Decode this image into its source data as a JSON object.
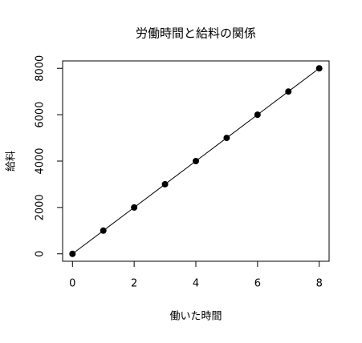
{
  "chart_data": {
    "type": "scatter",
    "title": "労働時間と給料の関係",
    "x_label": "働いた時間",
    "y_label": "給料",
    "x": [
      0,
      1,
      2,
      3,
      4,
      5,
      6,
      7,
      8
    ],
    "values": [
      0,
      1000,
      2000,
      3000,
      4000,
      5000,
      6000,
      7000,
      8000
    ],
    "color": "#000000",
    "connect": true,
    "xlim": [
      -0.32,
      8.32
    ],
    "xticks": [
      0,
      2,
      4,
      6,
      8
    ],
    "ylim": [
      -320,
      8320
    ],
    "yticks": [
      0,
      2000,
      4000,
      6000,
      8000
    ],
    "grid": false
  }
}
